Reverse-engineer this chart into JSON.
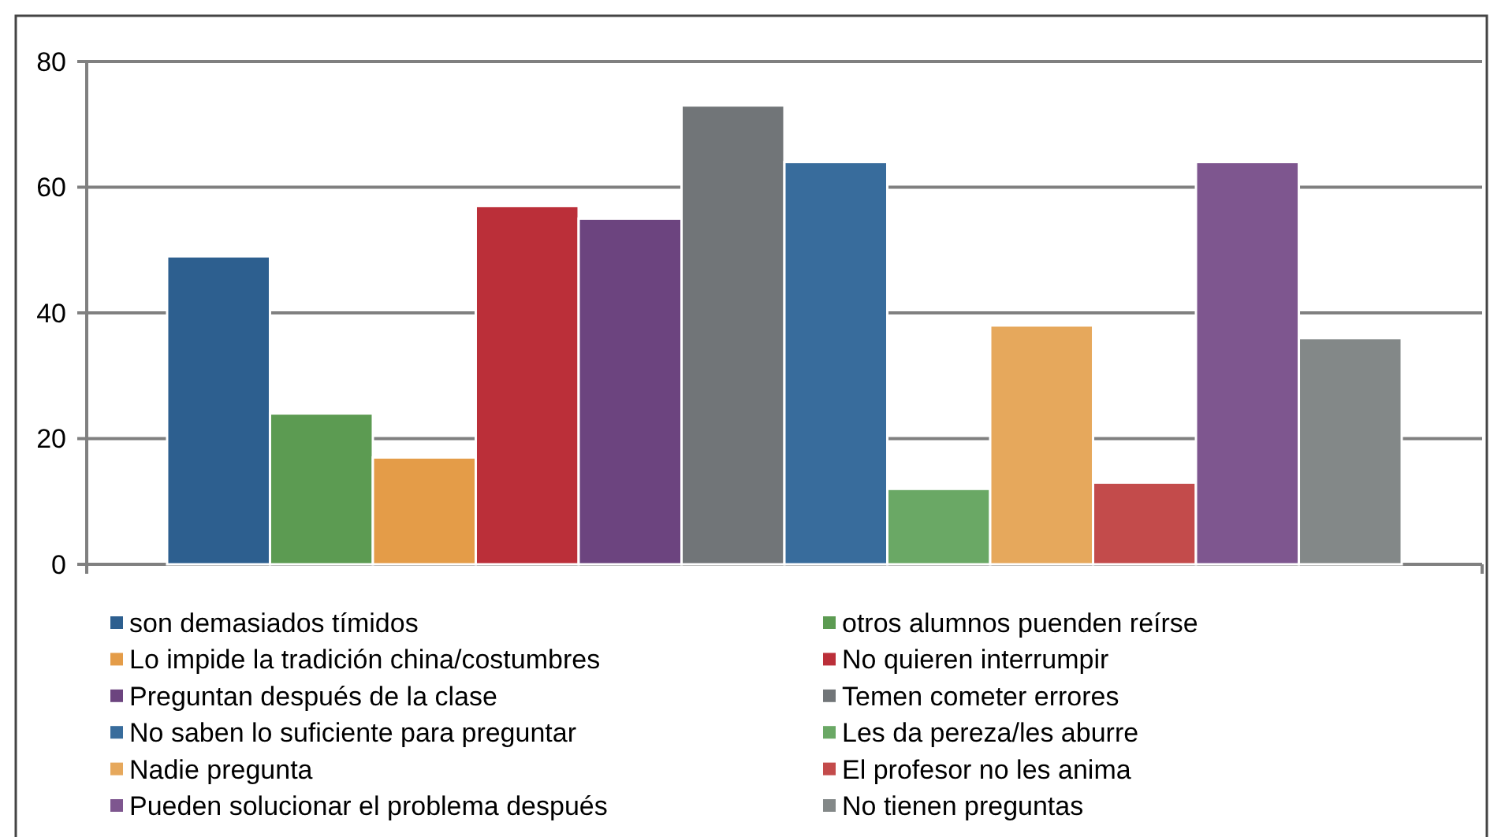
{
  "chart_data": {
    "type": "bar",
    "categories": [
      null
    ],
    "series": [
      {
        "name": "son demasiados tímidos",
        "color": "#2d5f8f",
        "values": [
          49
        ]
      },
      {
        "name": "otros alumnos  puenden reírse",
        "color": "#5c9b52",
        "values": [
          24
        ]
      },
      {
        "name": "Lo impide la tradición china/costumbres",
        "color": "#e49c48",
        "values": [
          17
        ]
      },
      {
        "name": "No quieren interrumpir",
        "color": "#bb2f39",
        "values": [
          57
        ]
      },
      {
        "name": "Preguntan después de la clase",
        "color": "#6c447f",
        "values": [
          55
        ]
      },
      {
        "name": "Temen cometer errores",
        "color": "#717578",
        "values": [
          73
        ]
      },
      {
        "name": "No saben lo suficiente para preguntar",
        "color": "#386c9c",
        "values": [
          64
        ]
      },
      {
        "name": "Les da pereza/les aburre",
        "color": "#6aa865",
        "values": [
          12
        ]
      },
      {
        "name": "Nadie pregunta",
        "color": "#e6a85c",
        "values": [
          38
        ]
      },
      {
        "name": "El profesor no les anima",
        "color": "#c34b4b",
        "values": [
          13
        ]
      },
      {
        "name": "Pueden solucionar el problema después",
        "color": "#7e568f",
        "values": [
          64
        ]
      },
      {
        "name": "No tienen preguntas",
        "color": "#838888",
        "values": [
          36
        ]
      }
    ],
    "ylim": [
      0,
      80
    ],
    "yticks": [
      0,
      20,
      40,
      60,
      80
    ],
    "grid": "y",
    "legend": "bottom"
  }
}
